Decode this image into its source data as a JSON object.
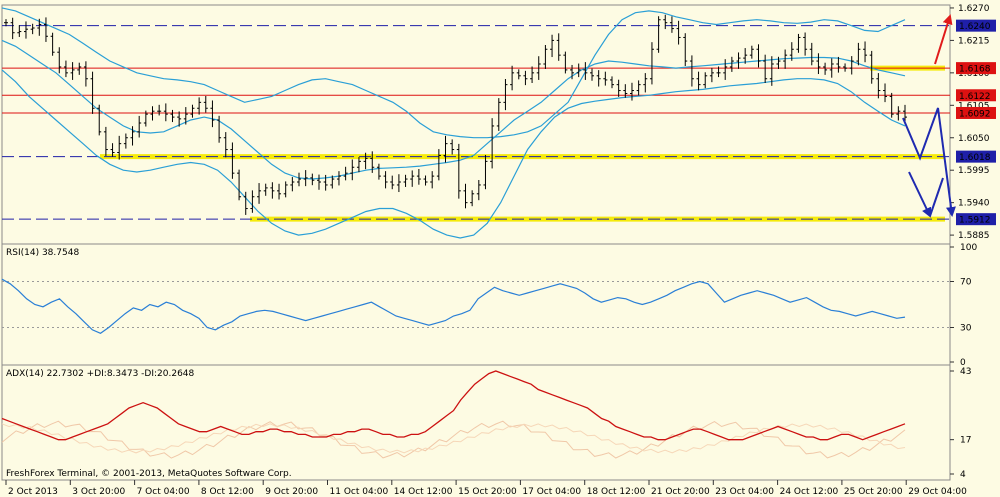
{
  "chart_data": [
    {
      "type": "line",
      "panel": "price",
      "instrument_chart": "candlestick (OHLC bars) with Bollinger Bands",
      "y_ticks": [
        1.627,
        1.6215,
        1.616,
        1.6105,
        1.605,
        1.5995,
        1.594,
        1.5885
      ],
      "ylim": [
        1.5875,
        1.6275
      ],
      "level_lines": [
        {
          "value": 1.624,
          "label": "1.6240",
          "style": "dashed",
          "color": "#1f1fa8",
          "label_bg": "#1f1fa8"
        },
        {
          "value": 1.6168,
          "label": "1.6168",
          "style": "solid",
          "color": "#d11",
          "label_bg": "#d11"
        },
        {
          "value": 1.6122,
          "label": "1.6122",
          "style": "solid",
          "color": "#d11",
          "label_bg": "#d11"
        },
        {
          "value": 1.6092,
          "label": "1.6092",
          "style": "solid",
          "color": "#d11",
          "label_bg": "#d11"
        },
        {
          "value": 1.6018,
          "label": "1.6018",
          "style": "dashed",
          "color": "#1f1fa8",
          "label_bg": "#1f1fa8"
        },
        {
          "value": 1.5912,
          "label": "1.5912",
          "style": "dashed",
          "color": "#1f1fa8",
          "label_bg": "#1f1fa8"
        }
      ],
      "highlight_lines": [
        1.6168,
        1.6018,
        1.5912
      ],
      "close_series": [
        1.6245,
        1.6228,
        1.623,
        1.6234,
        1.6236,
        1.6242,
        1.6222,
        1.6195,
        1.617,
        1.616,
        1.6165,
        1.617,
        1.615,
        1.61,
        1.606,
        1.603,
        1.6025,
        1.604,
        1.605,
        1.606,
        1.6075,
        1.609,
        1.6095,
        1.6095,
        1.609,
        1.6085,
        1.6082,
        1.609,
        1.61,
        1.611,
        1.61,
        1.608,
        1.605,
        1.603,
        1.599,
        1.595,
        1.593,
        1.595,
        1.596,
        1.5965,
        1.596,
        1.5955,
        1.597,
        1.5975,
        1.598,
        1.5982,
        1.5978,
        1.5975,
        1.597,
        1.598,
        1.5985,
        1.599,
        1.6,
        1.601,
        1.6015,
        1.6,
        1.5985,
        1.5975,
        1.597,
        1.5975,
        1.598,
        1.5985,
        1.598,
        1.5975,
        1.5985,
        1.602,
        1.604,
        1.603,
        1.596,
        1.594,
        1.5955,
        1.597,
        1.601,
        1.607,
        1.611,
        1.614,
        1.616,
        1.6155,
        1.615,
        1.616,
        1.6175,
        1.62,
        1.6215,
        1.619,
        1.6165,
        1.616,
        1.6165,
        1.616,
        1.6155,
        1.615,
        1.6148,
        1.614,
        1.613,
        1.6125,
        1.613,
        1.614,
        1.615,
        1.62,
        1.625,
        1.6245,
        1.6235,
        1.622,
        1.618,
        1.615,
        1.614,
        1.6155,
        1.616,
        1.616,
        1.617,
        1.618,
        1.6185,
        1.619,
        1.62,
        1.618,
        1.615,
        1.6175,
        1.618,
        1.619,
        1.62,
        1.622,
        1.62,
        1.618,
        1.617,
        1.6165,
        1.6175,
        1.617,
        1.6168,
        1.618,
        1.62,
        1.619,
        1.615,
        1.613,
        1.612,
        1.609,
        1.6095,
        1.6085
      ],
      "bollinger": {
        "upper": [
          1.627,
          1.6265,
          1.6255,
          1.6245,
          1.6235,
          1.6225,
          1.621,
          1.6195,
          1.618,
          1.617,
          1.616,
          1.6155,
          1.615,
          1.6148,
          1.6145,
          1.614,
          1.613,
          1.612,
          1.611,
          1.6115,
          1.612,
          1.613,
          1.614,
          1.6148,
          1.615,
          1.6145,
          1.614,
          1.613,
          1.612,
          1.611,
          1.6095,
          1.6075,
          1.606,
          1.6055,
          1.6052,
          1.605,
          1.605,
          1.6052,
          1.6055,
          1.606,
          1.607,
          1.609,
          1.611,
          1.615,
          1.619,
          1.6225,
          1.625,
          1.6262,
          1.6265,
          1.6262,
          1.6255,
          1.625,
          1.6245,
          1.6242,
          1.6245,
          1.6248,
          1.625,
          1.6248,
          1.6245,
          1.6244,
          1.6246,
          1.625,
          1.6248,
          1.624,
          1.6232,
          1.623,
          1.624,
          1.625
        ],
        "middle": [
          1.6215,
          1.6205,
          1.619,
          1.6175,
          1.616,
          1.614,
          1.612,
          1.61,
          1.6085,
          1.607,
          1.606,
          1.6058,
          1.606,
          1.607,
          1.608,
          1.6085,
          1.608,
          1.6065,
          1.6045,
          1.6025,
          1.6005,
          1.599,
          1.5982,
          1.598,
          1.5982,
          1.5985,
          1.599,
          1.5995,
          1.5998,
          1.5999,
          1.6,
          1.6002,
          1.6005,
          1.6008,
          1.6012,
          1.602,
          1.604,
          1.606,
          1.608,
          1.6095,
          1.611,
          1.613,
          1.615,
          1.6165,
          1.6175,
          1.618,
          1.6178,
          1.6175,
          1.6172,
          1.617,
          1.6168,
          1.617,
          1.6172,
          1.6174,
          1.6176,
          1.6178,
          1.618,
          1.6182,
          1.6184,
          1.6185,
          1.6186,
          1.6186,
          1.6185,
          1.618,
          1.6172,
          1.6165,
          1.616,
          1.6155
        ],
        "lower": [
          1.6165,
          1.6145,
          1.612,
          1.61,
          1.608,
          1.606,
          1.604,
          1.602,
          1.6005,
          1.5995,
          1.5992,
          1.5995,
          1.6,
          1.6005,
          1.6008,
          1.6005,
          1.5995,
          1.5975,
          1.595,
          1.5925,
          1.5905,
          1.5892,
          1.5885,
          1.5888,
          1.5895,
          1.5905,
          1.5915,
          1.5925,
          1.593,
          1.593,
          1.5922,
          1.591,
          1.5895,
          1.5885,
          1.588,
          1.5885,
          1.5905,
          1.594,
          1.5985,
          1.603,
          1.606,
          1.6085,
          1.61,
          1.6108,
          1.6112,
          1.6115,
          1.6118,
          1.612,
          1.6122,
          1.6125,
          1.6128,
          1.613,
          1.6132,
          1.6135,
          1.6138,
          1.614,
          1.6142,
          1.6145,
          1.6148,
          1.615,
          1.615,
          1.6148,
          1.6142,
          1.6128,
          1.611,
          1.6095,
          1.608,
          1.607
        ]
      },
      "forecast_arrows": [
        {
          "color": "red",
          "direction": "up"
        },
        {
          "color": "navy",
          "direction": "zigzag"
        }
      ]
    },
    {
      "type": "line",
      "panel": "rsi",
      "title": "RSI(14) 38.7548",
      "y_ticks": [
        100,
        70,
        30,
        0
      ],
      "ylim": [
        0,
        100
      ],
      "levels": [
        70,
        30
      ],
      "values": [
        72,
        68,
        62,
        55,
        50,
        48,
        52,
        55,
        48,
        42,
        35,
        28,
        25,
        30,
        36,
        42,
        47,
        45,
        50,
        48,
        52,
        50,
        45,
        42,
        38,
        30,
        28,
        32,
        35,
        40,
        42,
        44,
        45,
        44,
        42,
        40,
        38,
        36,
        38,
        40,
        42,
        44,
        46,
        48,
        50,
        52,
        48,
        44,
        40,
        38,
        36,
        34,
        32,
        34,
        36,
        40,
        42,
        45,
        55,
        60,
        65,
        62,
        60,
        58,
        60,
        62,
        64,
        66,
        68,
        66,
        64,
        60,
        55,
        52,
        54,
        56,
        55,
        52,
        50,
        52,
        55,
        58,
        62,
        65,
        68,
        70,
        68,
        60,
        52,
        55,
        58,
        60,
        62,
        60,
        58,
        55,
        52,
        54,
        56,
        52,
        48,
        45,
        44,
        42,
        40,
        42,
        44,
        42,
        40,
        38,
        39
      ]
    },
    {
      "type": "line",
      "panel": "adx",
      "title": "ADX(14) 22.7302 +DI:8.3473 -DI:20.2648",
      "y_ticks": [
        43,
        17,
        4
      ],
      "ylim": [
        4,
        43
      ],
      "values": [
        25,
        24,
        23,
        22,
        21,
        20,
        19,
        18,
        17,
        17,
        18,
        19,
        20,
        21,
        22,
        23,
        25,
        27,
        29,
        30,
        31,
        30,
        29,
        27,
        25,
        23,
        22,
        21,
        20,
        20,
        21,
        22,
        21,
        20,
        19,
        19,
        20,
        20,
        21,
        21,
        20,
        20,
        19,
        19,
        18,
        18,
        18,
        19,
        19,
        20,
        20,
        21,
        21,
        20,
        19,
        19,
        18,
        18,
        19,
        19,
        20,
        22,
        24,
        26,
        28,
        32,
        35,
        38,
        40,
        42,
        43,
        42,
        41,
        40,
        39,
        38,
        36,
        35,
        34,
        33,
        32,
        31,
        30,
        29,
        27,
        25,
        24,
        22,
        21,
        20,
        19,
        18,
        18,
        17,
        17,
        18,
        19,
        20,
        21,
        21,
        20,
        19,
        18,
        17,
        17,
        17,
        18,
        19,
        20,
        21,
        22,
        21,
        20,
        19,
        18,
        18,
        17,
        17,
        18,
        19,
        19,
        18,
        17,
        18,
        19,
        20,
        21,
        22,
        23
      ]
    }
  ],
  "x_axis": {
    "labels": [
      "2 Oct 2013",
      "3 Oct 20:00",
      "7 Oct 04:00",
      "8 Oct 12:00",
      "9 Oct 20:00",
      "11 Oct 04:00",
      "14 Oct 12:00",
      "15 Oct 20:00",
      "17 Oct 04:00",
      "18 Oct 12:00",
      "21 Oct 20:00",
      "23 Oct 04:00",
      "24 Oct 12:00",
      "25 Oct 20:00",
      "29 Oct 04:00"
    ]
  },
  "footer": {
    "copyright": "FreshForex Terminal, © 2001-2013, MetaQuotes Software Corp."
  },
  "colors": {
    "background": "#fdfbe3",
    "candle": "#000000",
    "bollinger": "#2a9fd6",
    "rsi": "#2a7fd6",
    "adx": "#cc1111",
    "di_plus": "#f0c8a8",
    "di_minus": "#f6d7b8",
    "highlight": "#f5ea00",
    "arrow_red": "#e01b1b",
    "arrow_blue": "#1f2ab0"
  }
}
